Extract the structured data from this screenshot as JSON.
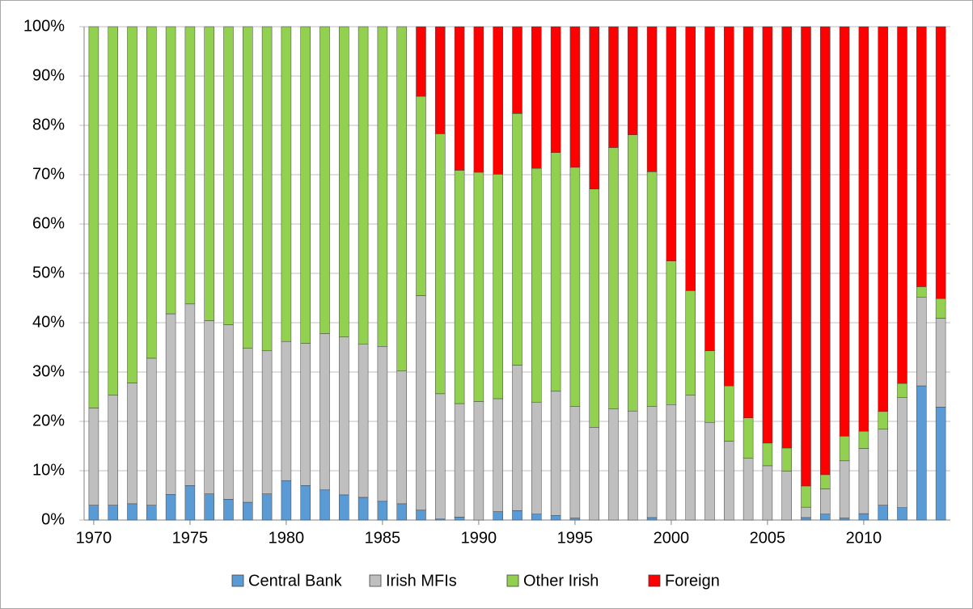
{
  "chart_data": {
    "type": "stacked_bar",
    "categories": [
      "1970",
      null,
      null,
      null,
      null,
      "1975",
      null,
      null,
      null,
      null,
      "1980",
      null,
      null,
      null,
      null,
      "1985",
      null,
      null,
      null,
      null,
      "1990",
      null,
      null,
      null,
      null,
      "1995",
      null,
      null,
      null,
      null,
      "2000",
      null,
      null,
      null,
      null,
      "2005",
      null,
      null,
      null,
      null,
      "2010",
      null,
      null,
      null,
      null
    ],
    "series": [
      {
        "name": "Central Bank",
        "color": "#5b9bd5",
        "values": [
          3,
          3,
          3.3,
          3,
          5.2,
          7,
          5.3,
          4.2,
          3.6,
          5.3,
          8,
          7,
          6.1,
          5.1,
          4.6,
          3.8,
          3.3,
          2,
          0.2,
          0.6,
          0,
          1.7,
          1.9,
          1.2,
          0.9,
          0.4,
          0,
          0,
          0,
          0.5,
          0,
          0,
          0,
          0,
          0,
          0,
          0,
          0.5,
          1.2,
          0.4,
          1.3,
          3,
          2.5,
          27.2,
          22.9
        ]
      },
      {
        "name": "Irish MFIs",
        "color": "#bfbfbf",
        "values": [
          19.7,
          22.3,
          24.5,
          29.8,
          36.6,
          36.8,
          35.1,
          35.4,
          31.2,
          29,
          28.2,
          28.8,
          31.7,
          32,
          31.1,
          31.4,
          26.9,
          43.5,
          25.4,
          23,
          24,
          22.9,
          29.5,
          22.7,
          25.2,
          22.6,
          18.8,
          22.5,
          22.1,
          22.5,
          23.4,
          25.3,
          19.8,
          16,
          12.5,
          11,
          9.9,
          2.1,
          5.1,
          11.6,
          13.2,
          15.4,
          22.3,
          18,
          18
        ]
      },
      {
        "name": "Other Irish",
        "color": "#92d050",
        "values": [
          77.3,
          74.7,
          72.2,
          67.2,
          58.2,
          56.2,
          59.6,
          60.4,
          65.2,
          65.7,
          63.8,
          64.2,
          62.2,
          62.9,
          64.3,
          64.8,
          69.8,
          40.4,
          52.7,
          47.3,
          46.5,
          45.5,
          51,
          47.4,
          48.4,
          48.5,
          48.3,
          53,
          56,
          47.6,
          29.1,
          21.2,
          14.5,
          11.2,
          8.2,
          4.6,
          4.7,
          4.3,
          2.9,
          5,
          3.5,
          3.6,
          2.9,
          2.1,
          4
        ]
      },
      {
        "name": "Foreign",
        "color": "#ff0000",
        "values": [
          0,
          0,
          0,
          0,
          0,
          0,
          0,
          0,
          0,
          0,
          0,
          0,
          0,
          0,
          0,
          0,
          0,
          14.1,
          21.7,
          29.1,
          29.5,
          29.9,
          17.6,
          28.7,
          25.5,
          28.5,
          32.9,
          24.5,
          21.9,
          29.4,
          47.5,
          53.5,
          65.7,
          72.8,
          79.3,
          84.4,
          85.4,
          93.1,
          90.8,
          83,
          82,
          78,
          72.3,
          52.7,
          55.1
        ]
      }
    ],
    "ylim": [
      0,
      100
    ],
    "yticks": [
      {
        "value": 0,
        "label": "0%"
      },
      {
        "value": 10,
        "label": "10%"
      },
      {
        "value": 20,
        "label": "20%"
      },
      {
        "value": 30,
        "label": "30%"
      },
      {
        "value": 40,
        "label": "40%"
      },
      {
        "value": 50,
        "label": "50%"
      },
      {
        "value": 60,
        "label": "60%"
      },
      {
        "value": 70,
        "label": "70%"
      },
      {
        "value": 80,
        "label": "80%"
      },
      {
        "value": 90,
        "label": "90%"
      },
      {
        "value": 100,
        "label": "100%"
      }
    ],
    "grid": true,
    "legend": "bottom"
  }
}
